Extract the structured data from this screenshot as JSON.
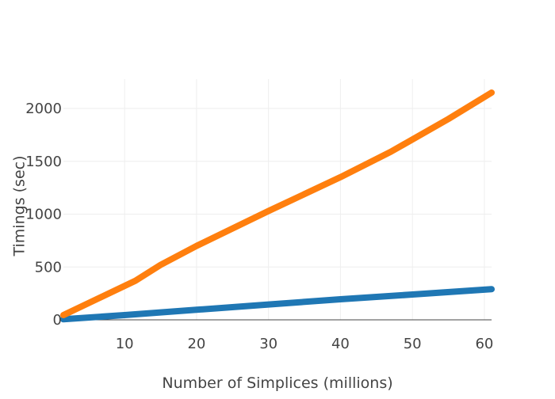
{
  "chart_data": {
    "type": "line",
    "title": "",
    "xlabel": "Number of Simplices (millions)",
    "ylabel": "Timings (sec)",
    "xlim": [
      1.5,
      61
    ],
    "ylim": [
      -20,
      2280
    ],
    "x_ticks": [
      10,
      20,
      30,
      40,
      50,
      60
    ],
    "y_ticks": [
      0,
      500,
      1000,
      1500,
      2000
    ],
    "grid": true,
    "legend": "none",
    "series": [
      {
        "color": "#1f77b4",
        "x": [
          1.5,
          10,
          20,
          30,
          40,
          50,
          61
        ],
        "y": [
          5,
          45,
          95,
          145,
          195,
          240,
          290
        ]
      },
      {
        "color": "#ff7f0e",
        "x": [
          1.5,
          11.5,
          15,
          20,
          30,
          40,
          47,
          55,
          61
        ],
        "y": [
          45,
          370,
          520,
          700,
          1030,
          1350,
          1590,
          1900,
          2150
        ]
      }
    ]
  }
}
